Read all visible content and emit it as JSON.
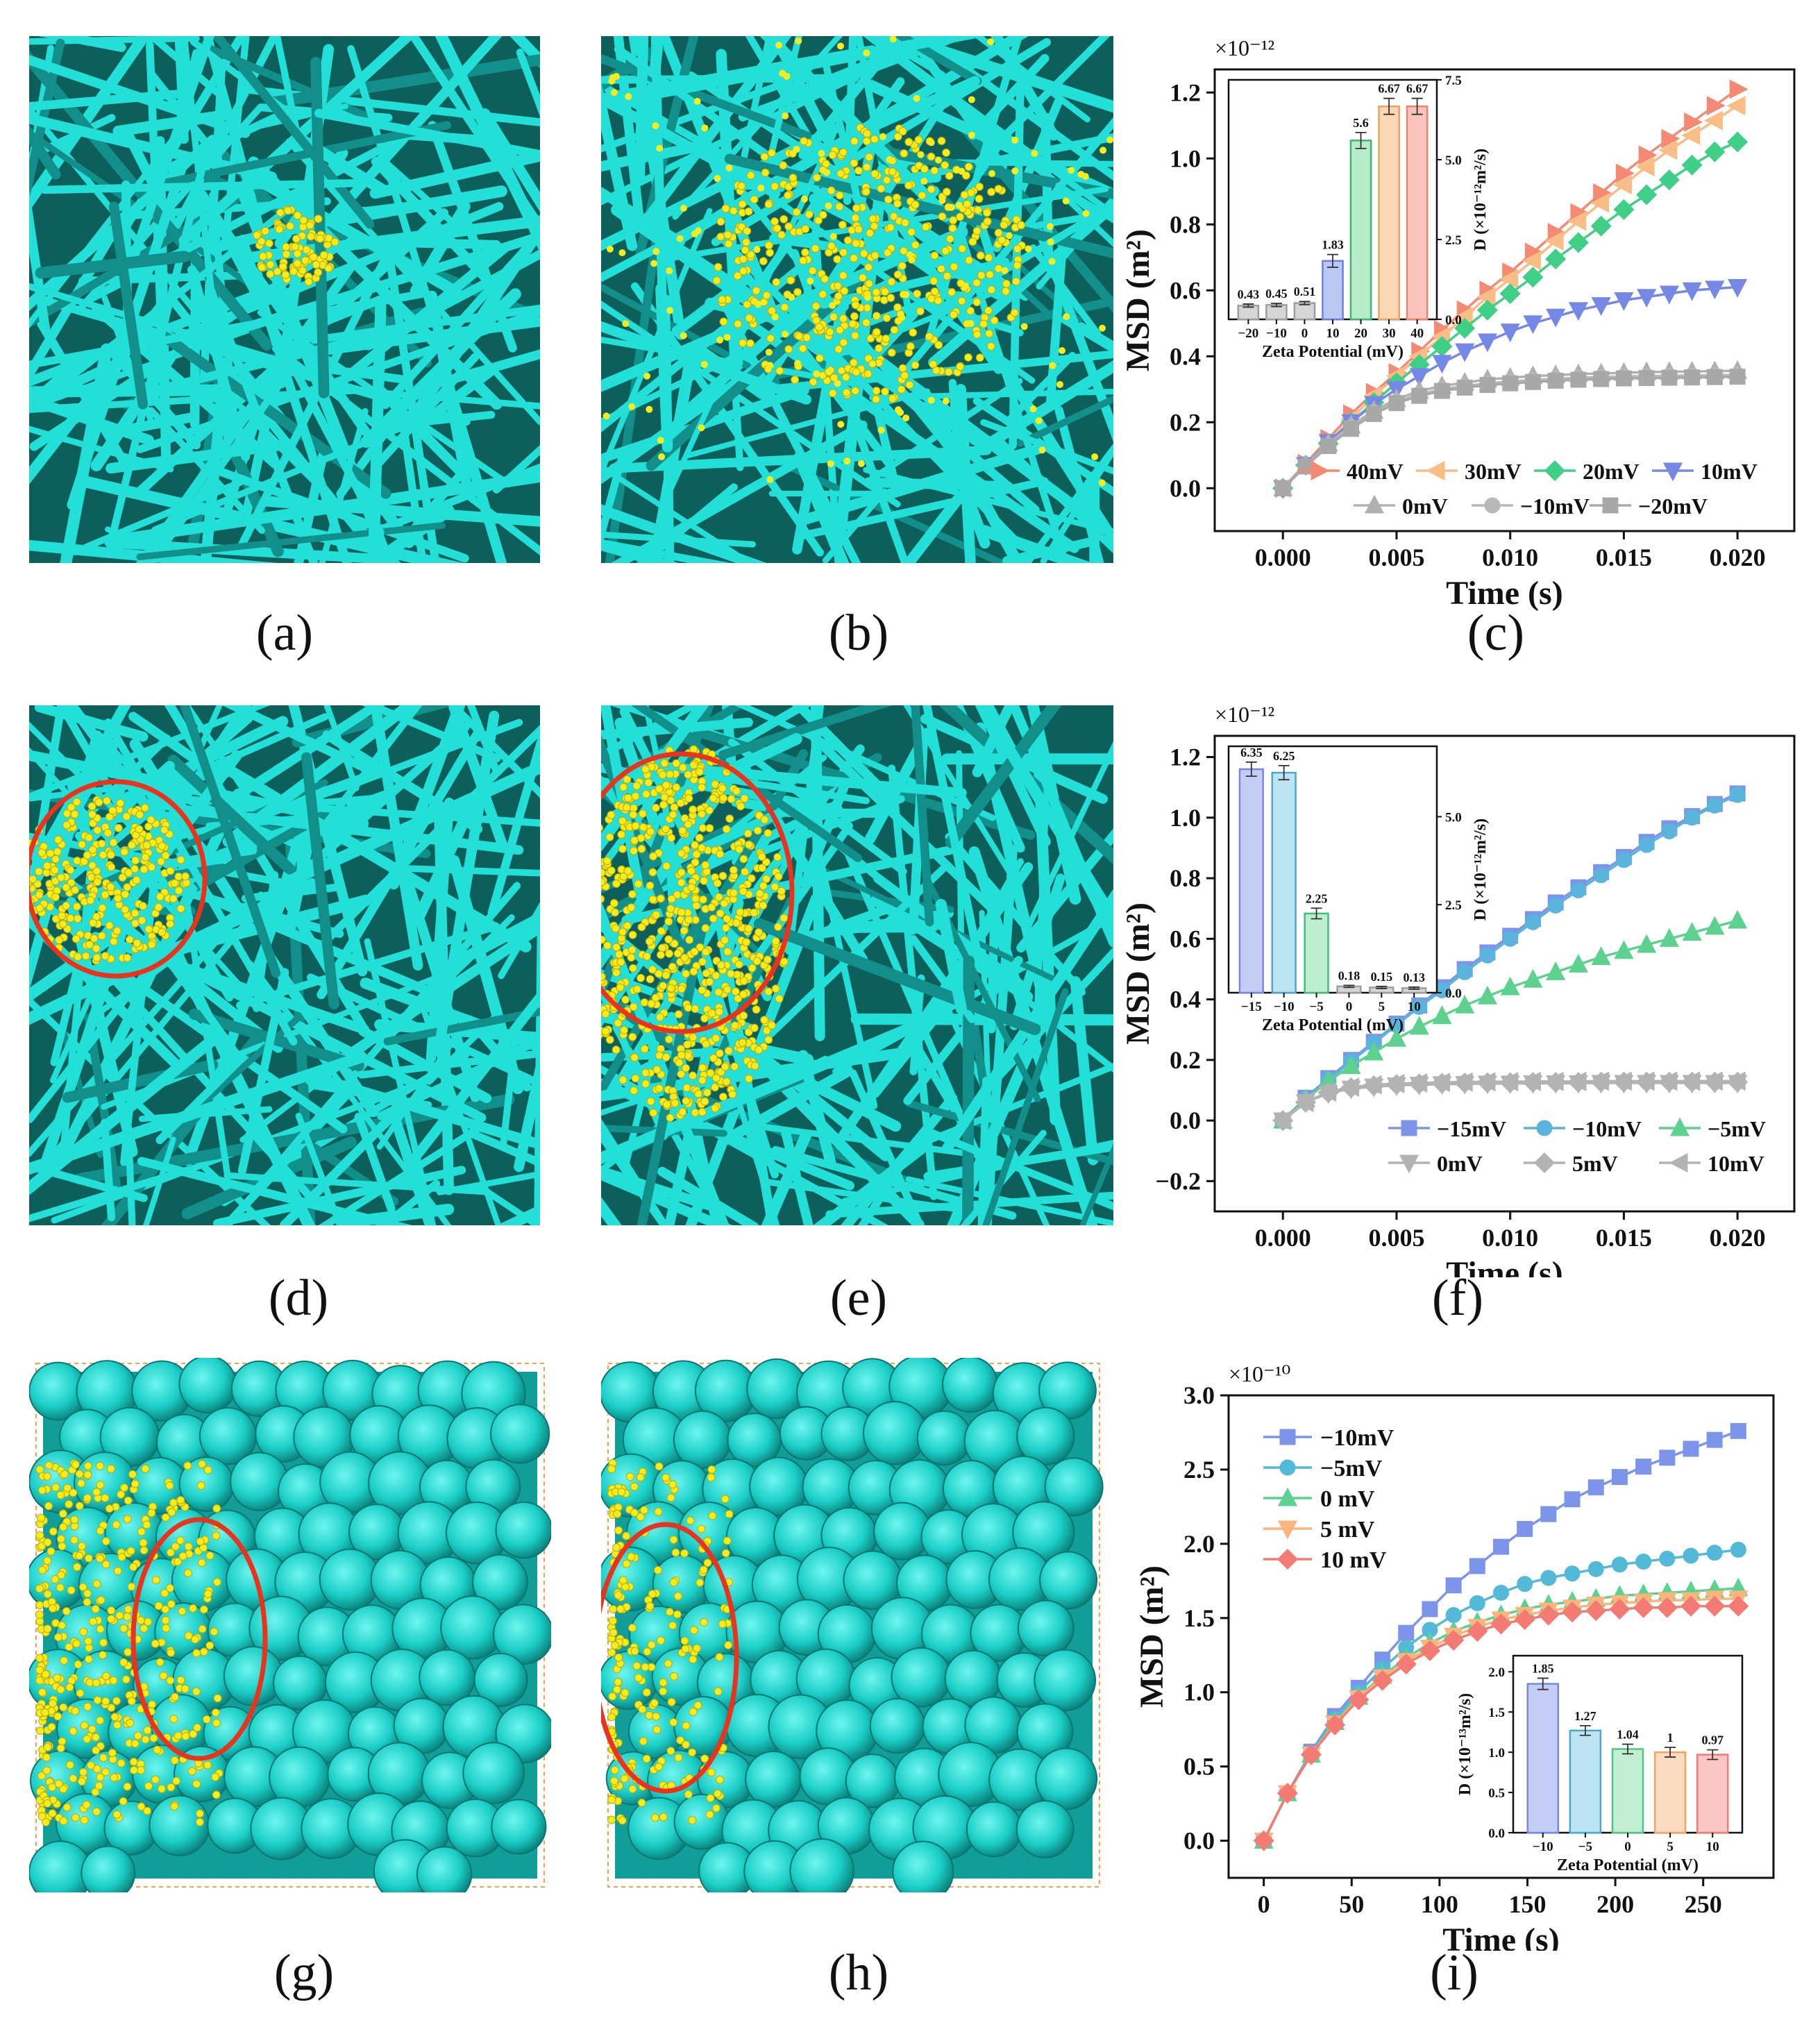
{
  "panel_labels": [
    "(a)",
    "(b)",
    "(c)",
    "(d)",
    "(e)",
    "(f)",
    "(g)",
    "(h)",
    "(i)"
  ],
  "colors": {
    "fiber": "#22e0d8",
    "fiber_dark": "#128f8a",
    "particle": "#f4ec1c",
    "circle": "#e8341c",
    "box_edge": "#f6a24a",
    "c40": "#f58a74",
    "c30": "#f9bd86",
    "c20": "#3fcf86",
    "c10": "#7688e6",
    "cm10_blue": "#7c95ea",
    "cm10_cyan": "#52b9d8",
    "c0_green": "#52cc86",
    "c5_orange": "#f7b27a",
    "c10_red": "#f47a74",
    "grey": "#b3b3b3"
  },
  "chart_data": [
    {
      "type": "line",
      "panel": "(c)",
      "xlabel": "Time (s)",
      "ylabel": "MSD (m²)",
      "exponent_label": "×10⁻¹²",
      "xlim": [
        -0.003,
        0.0225
      ],
      "ylim": [
        -0.13,
        1.27
      ],
      "xticks": [
        0.0,
        0.005,
        0.01,
        0.015,
        0.02
      ],
      "xtick_labels": [
        "0.000",
        "0.005",
        "0.010",
        "0.015",
        "0.020"
      ],
      "yticks": [
        0.0,
        0.2,
        0.4,
        0.6,
        0.8,
        1.0,
        1.2
      ],
      "ytick_labels": [
        "0.0",
        "0.2",
        "0.4",
        "0.6",
        "0.8",
        "1.0",
        "1.2"
      ],
      "x": [
        0,
        0.001,
        0.002,
        0.003,
        0.004,
        0.005,
        0.006,
        0.007,
        0.008,
        0.009,
        0.01,
        0.011,
        0.012,
        0.013,
        0.014,
        0.015,
        0.016,
        0.017,
        0.018,
        0.019,
        0.02
      ],
      "legend_placement": "bottom-right",
      "series": [
        {
          "name": "40mV",
          "color": "#f58a74",
          "marker": "tri-right",
          "values": [
            0,
            0.075,
            0.15,
            0.225,
            0.29,
            0.35,
            0.415,
            0.48,
            0.54,
            0.6,
            0.655,
            0.715,
            0.775,
            0.835,
            0.895,
            0.955,
            1.01,
            1.06,
            1.11,
            1.16,
            1.21
          ]
        },
        {
          "name": "30mV",
          "color": "#f9bd86",
          "marker": "tri-left",
          "values": [
            0,
            0.07,
            0.14,
            0.21,
            0.28,
            0.34,
            0.4,
            0.46,
            0.52,
            0.58,
            0.635,
            0.69,
            0.75,
            0.81,
            0.865,
            0.92,
            0.975,
            1.025,
            1.07,
            1.115,
            1.16
          ]
        },
        {
          "name": "20mV",
          "color": "#3fcf86",
          "marker": "diamond",
          "values": [
            0,
            0.07,
            0.135,
            0.2,
            0.26,
            0.32,
            0.375,
            0.43,
            0.485,
            0.54,
            0.59,
            0.64,
            0.695,
            0.745,
            0.795,
            0.845,
            0.89,
            0.935,
            0.98,
            1.02,
            1.05
          ]
        },
        {
          "name": "10mV",
          "color": "#7688e6",
          "marker": "tri-down",
          "values": [
            0,
            0.07,
            0.14,
            0.2,
            0.255,
            0.3,
            0.34,
            0.38,
            0.415,
            0.445,
            0.475,
            0.5,
            0.52,
            0.54,
            0.555,
            0.57,
            0.58,
            0.59,
            0.6,
            0.605,
            0.61
          ]
        },
        {
          "name": "0mV",
          "color": "#b0b0b0",
          "marker": "tri-up",
          "values": [
            0,
            0.07,
            0.135,
            0.19,
            0.235,
            0.27,
            0.295,
            0.31,
            0.32,
            0.33,
            0.335,
            0.34,
            0.343,
            0.346,
            0.348,
            0.35,
            0.352,
            0.353,
            0.354,
            0.355,
            0.356
          ]
        },
        {
          "name": "−10mV",
          "color": "#b8b8b8",
          "marker": "circle",
          "values": [
            0,
            0.068,
            0.13,
            0.185,
            0.23,
            0.262,
            0.285,
            0.3,
            0.31,
            0.318,
            0.324,
            0.328,
            0.332,
            0.335,
            0.337,
            0.339,
            0.34,
            0.341,
            0.342,
            0.343,
            0.344
          ]
        },
        {
          "name": "−20mV",
          "color": "#a8a8a8",
          "marker": "square",
          "values": [
            0,
            0.066,
            0.128,
            0.18,
            0.225,
            0.258,
            0.28,
            0.295,
            0.305,
            0.313,
            0.318,
            0.322,
            0.326,
            0.329,
            0.331,
            0.333,
            0.334,
            0.335,
            0.336,
            0.337,
            0.338
          ]
        }
      ],
      "inset": {
        "type": "bar",
        "xlabel": "Zeta Potential (mV)",
        "ylabel": "D (×10⁻¹²m²/s)",
        "ylim": [
          0,
          7.5
        ],
        "yticks": [
          0.0,
          2.5,
          5.0,
          7.5
        ],
        "ytick_labels": [
          "0.0",
          "2.5",
          "5.0",
          "7.5"
        ],
        "yaxis_side": "right",
        "categories": [
          "−20",
          "−10",
          "0",
          "10",
          "20",
          "30",
          "40"
        ],
        "values": [
          0.43,
          0.45,
          0.51,
          1.83,
          5.6,
          6.67,
          6.67
        ],
        "value_labels": [
          "0.43",
          "0.45",
          "0.51",
          "1.83",
          "5.6",
          "6.67",
          "6.67"
        ],
        "errors": [
          0.05,
          0.05,
          0.05,
          0.2,
          0.25,
          0.25,
          0.25
        ],
        "colors": [
          "#d6d6d6",
          "#d6d6d6",
          "#d6d6d6",
          "#bcc8f4",
          "#b7ecc9",
          "#fbd8b4",
          "#f8c4bc"
        ],
        "edge_colors": [
          "#9e9e9e",
          "#9e9e9e",
          "#9e9e9e",
          "#6f82d8",
          "#3fb477",
          "#e8a264",
          "#e88474"
        ]
      }
    },
    {
      "type": "line",
      "panel": "(f)",
      "xlabel": "Time (s)",
      "ylabel": "MSD (m²)",
      "exponent_label": "×10⁻¹²",
      "xlim": [
        -0.003,
        0.0225
      ],
      "ylim": [
        -0.3,
        1.27
      ],
      "xticks": [
        0.0,
        0.005,
        0.01,
        0.015,
        0.02
      ],
      "xtick_labels": [
        "0.000",
        "0.005",
        "0.010",
        "0.015",
        "0.020"
      ],
      "yticks": [
        -0.2,
        0.0,
        0.2,
        0.4,
        0.6,
        0.8,
        1.0,
        1.2
      ],
      "ytick_labels": [
        "−0.2",
        "0.0",
        "0.2",
        "0.4",
        "0.6",
        "0.8",
        "1.0",
        "1.2"
      ],
      "x": [
        0,
        0.001,
        0.002,
        0.003,
        0.004,
        0.005,
        0.006,
        0.007,
        0.008,
        0.009,
        0.01,
        0.011,
        0.012,
        0.013,
        0.014,
        0.015,
        0.016,
        0.017,
        0.018,
        0.019,
        0.02
      ],
      "legend_placement": "bottom-right",
      "series": [
        {
          "name": "−15mV",
          "color": "#7c95ea",
          "marker": "square",
          "values": [
            0,
            0.075,
            0.14,
            0.2,
            0.26,
            0.32,
            0.38,
            0.44,
            0.5,
            0.555,
            0.61,
            0.665,
            0.72,
            0.77,
            0.82,
            0.87,
            0.92,
            0.965,
            1.005,
            1.045,
            1.08
          ]
        },
        {
          "name": "−10mV",
          "color": "#5ab4dc",
          "marker": "circle",
          "values": [
            0,
            0.07,
            0.135,
            0.195,
            0.255,
            0.315,
            0.375,
            0.43,
            0.49,
            0.545,
            0.6,
            0.655,
            0.71,
            0.76,
            0.81,
            0.86,
            0.91,
            0.955,
            1.0,
            1.04,
            1.075
          ]
        },
        {
          "name": "−5mV",
          "color": "#5dd28e",
          "marker": "tri-up",
          "values": [
            0,
            0.07,
            0.13,
            0.18,
            0.225,
            0.27,
            0.31,
            0.345,
            0.38,
            0.41,
            0.44,
            0.465,
            0.49,
            0.515,
            0.54,
            0.56,
            0.58,
            0.6,
            0.62,
            0.64,
            0.66
          ]
        },
        {
          "name": "0mV",
          "color": "#b3b3b3",
          "marker": "tri-down",
          "values": [
            0,
            0.06,
            0.09,
            0.105,
            0.112,
            0.116,
            0.118,
            0.12,
            0.121,
            0.122,
            0.122,
            0.123,
            0.123,
            0.123,
            0.124,
            0.124,
            0.124,
            0.124,
            0.124,
            0.124,
            0.124
          ]
        },
        {
          "name": "5mV",
          "color": "#b3b3b3",
          "marker": "diamond",
          "values": [
            0,
            0.06,
            0.092,
            0.108,
            0.115,
            0.119,
            0.121,
            0.123,
            0.124,
            0.125,
            0.125,
            0.126,
            0.126,
            0.126,
            0.127,
            0.127,
            0.127,
            0.127,
            0.127,
            0.127,
            0.127
          ]
        },
        {
          "name": "10mV",
          "color": "#b3b3b3",
          "marker": "tri-left",
          "values": [
            0,
            0.06,
            0.094,
            0.11,
            0.118,
            0.122,
            0.124,
            0.126,
            0.127,
            0.128,
            0.128,
            0.129,
            0.129,
            0.129,
            0.13,
            0.13,
            0.13,
            0.13,
            0.13,
            0.13,
            0.13
          ]
        }
      ],
      "inset": {
        "type": "bar",
        "xlabel": "Zeta Potential (mV)",
        "ylabel": "D (×10⁻¹²m²/s)",
        "ylim": [
          0,
          7.0
        ],
        "yticks": [
          0.0,
          2.5,
          5.0
        ],
        "ytick_labels": [
          "0.0",
          "2.5",
          "5.0"
        ],
        "yaxis_side": "right",
        "categories": [
          "−15",
          "−10",
          "−5",
          "0",
          "5",
          "10"
        ],
        "values": [
          6.35,
          6.25,
          2.25,
          0.18,
          0.15,
          0.13
        ],
        "value_labels": [
          "6.35",
          "6.25",
          "2.25",
          "0.18",
          "0.15",
          "0.13"
        ],
        "errors": [
          0.2,
          0.2,
          0.15,
          0.03,
          0.03,
          0.03
        ],
        "colors": [
          "#c4cdf6",
          "#bde4f2",
          "#bdeecd",
          "#d6d6d6",
          "#d6d6d6",
          "#d6d6d6"
        ],
        "edge_colors": [
          "#7689dc",
          "#4ea6cc",
          "#48bb7c",
          "#9e9e9e",
          "#9e9e9e",
          "#9e9e9e"
        ]
      }
    },
    {
      "type": "line",
      "panel": "(i)",
      "xlabel": "Time (s)",
      "ylabel": "MSD (m²)",
      "exponent_label": "×10⁻¹⁰",
      "xlim": [
        -20,
        290
      ],
      "ylim": [
        -0.25,
        3.0
      ],
      "xticks": [
        0,
        50,
        100,
        150,
        200,
        250
      ],
      "xtick_labels": [
        "0",
        "50",
        "100",
        "150",
        "200",
        "250"
      ],
      "yticks": [
        0.0,
        0.5,
        1.0,
        1.5,
        2.0,
        2.5,
        3.0
      ],
      "ytick_labels": [
        "0.0",
        "0.5",
        "1.0",
        "1.5",
        "2.0",
        "2.5",
        "3.0"
      ],
      "x": [
        0,
        13.5,
        27,
        40.5,
        54,
        67.5,
        81,
        94.5,
        108,
        121.5,
        135,
        148.5,
        162,
        175.5,
        189,
        202.5,
        216,
        229.5,
        243,
        256.5,
        270
      ],
      "legend_placement": "top-left",
      "series": [
        {
          "name": "−10mV",
          "color": "#7c95ea",
          "marker": "square",
          "values": [
            0,
            0.32,
            0.6,
            0.84,
            1.03,
            1.22,
            1.4,
            1.56,
            1.72,
            1.85,
            1.98,
            2.1,
            2.2,
            2.3,
            2.38,
            2.45,
            2.52,
            2.58,
            2.64,
            2.7,
            2.76
          ]
        },
        {
          "name": "−5mV",
          "color": "#52b9d8",
          "marker": "circle",
          "values": [
            0,
            0.32,
            0.59,
            0.82,
            1.0,
            1.16,
            1.3,
            1.42,
            1.52,
            1.6,
            1.67,
            1.73,
            1.77,
            1.8,
            1.83,
            1.86,
            1.88,
            1.9,
            1.92,
            1.94,
            1.96
          ]
        },
        {
          "name": "0 mV",
          "color": "#5dd28e",
          "marker": "tri-up",
          "values": [
            0,
            0.32,
            0.58,
            0.8,
            0.97,
            1.11,
            1.23,
            1.33,
            1.41,
            1.47,
            1.52,
            1.56,
            1.59,
            1.61,
            1.63,
            1.65,
            1.66,
            1.67,
            1.68,
            1.69,
            1.7
          ]
        },
        {
          "name": "5 mV",
          "color": "#f9b57c",
          "marker": "tri-down",
          "values": [
            0,
            0.32,
            0.58,
            0.79,
            0.96,
            1.1,
            1.21,
            1.3,
            1.38,
            1.44,
            1.49,
            1.52,
            1.55,
            1.57,
            1.59,
            1.6,
            1.61,
            1.62,
            1.62,
            1.63,
            1.63
          ]
        },
        {
          "name": "10 mV",
          "color": "#f47a74",
          "marker": "diamond",
          "values": [
            0,
            0.32,
            0.58,
            0.78,
            0.95,
            1.08,
            1.19,
            1.28,
            1.35,
            1.41,
            1.46,
            1.49,
            1.52,
            1.54,
            1.55,
            1.56,
            1.57,
            1.57,
            1.58,
            1.58,
            1.58
          ]
        }
      ],
      "inset": {
        "type": "bar",
        "xlabel": "Zeta Potential (mV)",
        "ylabel": "D (×10⁻¹³m²/s)",
        "ylim": [
          0,
          2.2
        ],
        "yticks": [
          0.0,
          0.5,
          1.0,
          1.5,
          2.0
        ],
        "ytick_labels": [
          "0.0",
          "0.5",
          "1.0",
          "1.5",
          "2.0"
        ],
        "yaxis_side": "left",
        "categories": [
          "−10",
          "−5",
          "0",
          "5",
          "10"
        ],
        "values": [
          1.85,
          1.27,
          1.04,
          1.0,
          0.97
        ],
        "value_labels": [
          "1.85",
          "1.27",
          "1.04",
          "1",
          "0.97"
        ],
        "errors": [
          0.07,
          0.06,
          0.06,
          0.06,
          0.06
        ],
        "colors": [
          "#c4cdf6",
          "#bde4f2",
          "#c2efd3",
          "#fcdcc0",
          "#fac7c4"
        ],
        "edge_colors": [
          "#7689dc",
          "#4ea6cc",
          "#52c488",
          "#f0a468",
          "#ec7c74"
        ]
      }
    }
  ]
}
